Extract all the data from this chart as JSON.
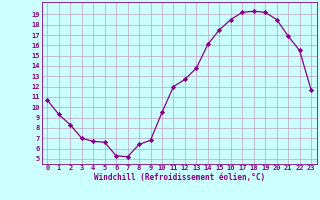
{
  "x": [
    0,
    1,
    2,
    3,
    4,
    5,
    6,
    7,
    8,
    9,
    10,
    11,
    12,
    13,
    14,
    15,
    16,
    17,
    18,
    19,
    20,
    21,
    22,
    23
  ],
  "y": [
    10.7,
    9.3,
    8.3,
    7.0,
    6.7,
    6.6,
    5.3,
    5.2,
    6.4,
    6.8,
    9.5,
    12.0,
    12.7,
    13.8,
    16.1,
    17.5,
    18.5,
    19.2,
    19.3,
    19.2,
    18.5,
    16.9,
    15.5,
    11.7
  ],
  "line_color": "#880088",
  "marker": "D",
  "marker_size": 2.2,
  "bg_color": "#ccffff",
  "grid_color": "#c0a0c0",
  "xlabel": "Windchill (Refroidissement éolien,°C)",
  "xlim": [
    -0.5,
    23.5
  ],
  "ylim": [
    4.5,
    20.2
  ],
  "xtick_labels": [
    "0",
    "1",
    "2",
    "3",
    "4",
    "5",
    "6",
    "7",
    "8",
    "9",
    "10",
    "11",
    "12",
    "13",
    "14",
    "15",
    "16",
    "17",
    "18",
    "19",
    "20",
    "21",
    "22",
    "23"
  ],
  "ytick_values": [
    5,
    6,
    7,
    8,
    9,
    10,
    11,
    12,
    13,
    14,
    15,
    16,
    17,
    18,
    19
  ],
  "font_color": "#880088",
  "tick_fontsize": 5.0,
  "xlabel_fontsize": 5.5
}
